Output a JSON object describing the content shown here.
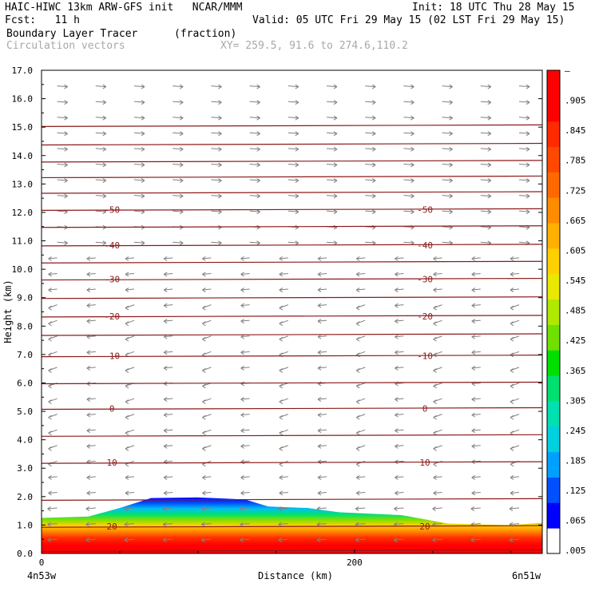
{
  "header": {
    "title_left": "HAIC-HIWC 13km ARW-GFS init   NCAR/MMM",
    "init": "Init: 18 UTC Thu 28 May 15",
    "fcst": "Fcst:   11 h",
    "valid": "Valid: 05 UTC Fri 29 May 15 (02 LST Fri 29 May 15)",
    "field_name": "Boundary Layer Tracer",
    "field_units": "(fraction)",
    "overlay_name": "Circulation vectors",
    "xy_range": "XY= 259.5, 91.6 to 274.6,110.2"
  },
  "colors": {
    "contour": "#8b1a1a",
    "vector": "#808080",
    "colorbar": [
      "#ffffff",
      "#0000ff",
      "#0050ff",
      "#00a0ff",
      "#00d0e0",
      "#00e0b0",
      "#00e070",
      "#00e000",
      "#70e000",
      "#b0e800",
      "#e8e800",
      "#ffd000",
      "#ffb000",
      "#ff8c00",
      "#ff6a00",
      "#ff4800",
      "#ff2a00",
      "#ff0000",
      "#ff0000"
    ]
  },
  "chart_data": {
    "type": "heatmap",
    "title": "Boundary Layer Tracer",
    "units": "(fraction)",
    "xlabel": "Distance (km)",
    "ylabel": "Height (km)",
    "xlim": [
      0,
      320
    ],
    "ylim": [
      0,
      17
    ],
    "x_ticks": [
      0,
      200
    ],
    "x_tick_labels": [
      "0",
      "200"
    ],
    "x_end_labels": {
      "left": "4n53w",
      "right": "6n51w"
    },
    "y_ticks": [
      0,
      1,
      2,
      3,
      4,
      5,
      6,
      7,
      8,
      9,
      10,
      11,
      12,
      13,
      14,
      15,
      16,
      17
    ],
    "y_tick_labels": [
      "0.0",
      "1.0",
      "2.0",
      "3.0",
      "4.0",
      "5.0",
      "6.0",
      "7.0",
      "8.0",
      "9.0",
      "10.0",
      "11.0",
      "12.0",
      "13.0",
      "14.0",
      "15.0",
      "16.0",
      "17.0"
    ],
    "colorbar_labels": [
      "–",
      ".905",
      ".845",
      ".785",
      ".725",
      ".665",
      ".605",
      ".545",
      ".485",
      ".425",
      ".365",
      ".305",
      ".245",
      ".185",
      ".125",
      ".065",
      ".005"
    ],
    "boundary_layer_top_km": [
      {
        "x": 0,
        "z": 1.25
      },
      {
        "x": 30,
        "z": 1.3
      },
      {
        "x": 50,
        "z": 1.6
      },
      {
        "x": 70,
        "z": 1.95
      },
      {
        "x": 100,
        "z": 1.97
      },
      {
        "x": 130,
        "z": 1.9
      },
      {
        "x": 145,
        "z": 1.65
      },
      {
        "x": 170,
        "z": 1.6
      },
      {
        "x": 190,
        "z": 1.45
      },
      {
        "x": 230,
        "z": 1.35
      },
      {
        "x": 260,
        "z": 1.05
      },
      {
        "x": 300,
        "z": 1.0
      },
      {
        "x": 320,
        "z": 1.08
      }
    ],
    "temperature_contours": [
      {
        "z": 0.1,
        "label": ""
      },
      {
        "z": 0.95,
        "label": "20"
      },
      {
        "z": 1.9,
        "label": ""
      },
      {
        "z": 3.2,
        "label": "10"
      },
      {
        "z": 4.15,
        "label": ""
      },
      {
        "z": 5.1,
        "label": "0"
      },
      {
        "z": 6.0,
        "label": ""
      },
      {
        "z": 6.95,
        "label": "-10"
      },
      {
        "z": 7.7,
        "label": ""
      },
      {
        "z": 8.35,
        "label": "-20"
      },
      {
        "z": 9.0,
        "label": ""
      },
      {
        "z": 9.65,
        "label": "-30"
      },
      {
        "z": 10.25,
        "label": ""
      },
      {
        "z": 10.85,
        "label": "-40"
      },
      {
        "z": 11.5,
        "label": ""
      },
      {
        "z": 12.1,
        "label": "-50"
      },
      {
        "z": 12.7,
        "label": ""
      },
      {
        "z": 13.25,
        "label": ""
      },
      {
        "z": 13.8,
        "label": ""
      },
      {
        "z": 14.4,
        "label": ""
      },
      {
        "z": 15.05,
        "label": ""
      }
    ],
    "contour_label_positions_km": [
      45,
      245
    ],
    "vector_field": "circulation vectors: rightward (westerly) above ~11 km, leftward (easterly) below ~10 km"
  }
}
